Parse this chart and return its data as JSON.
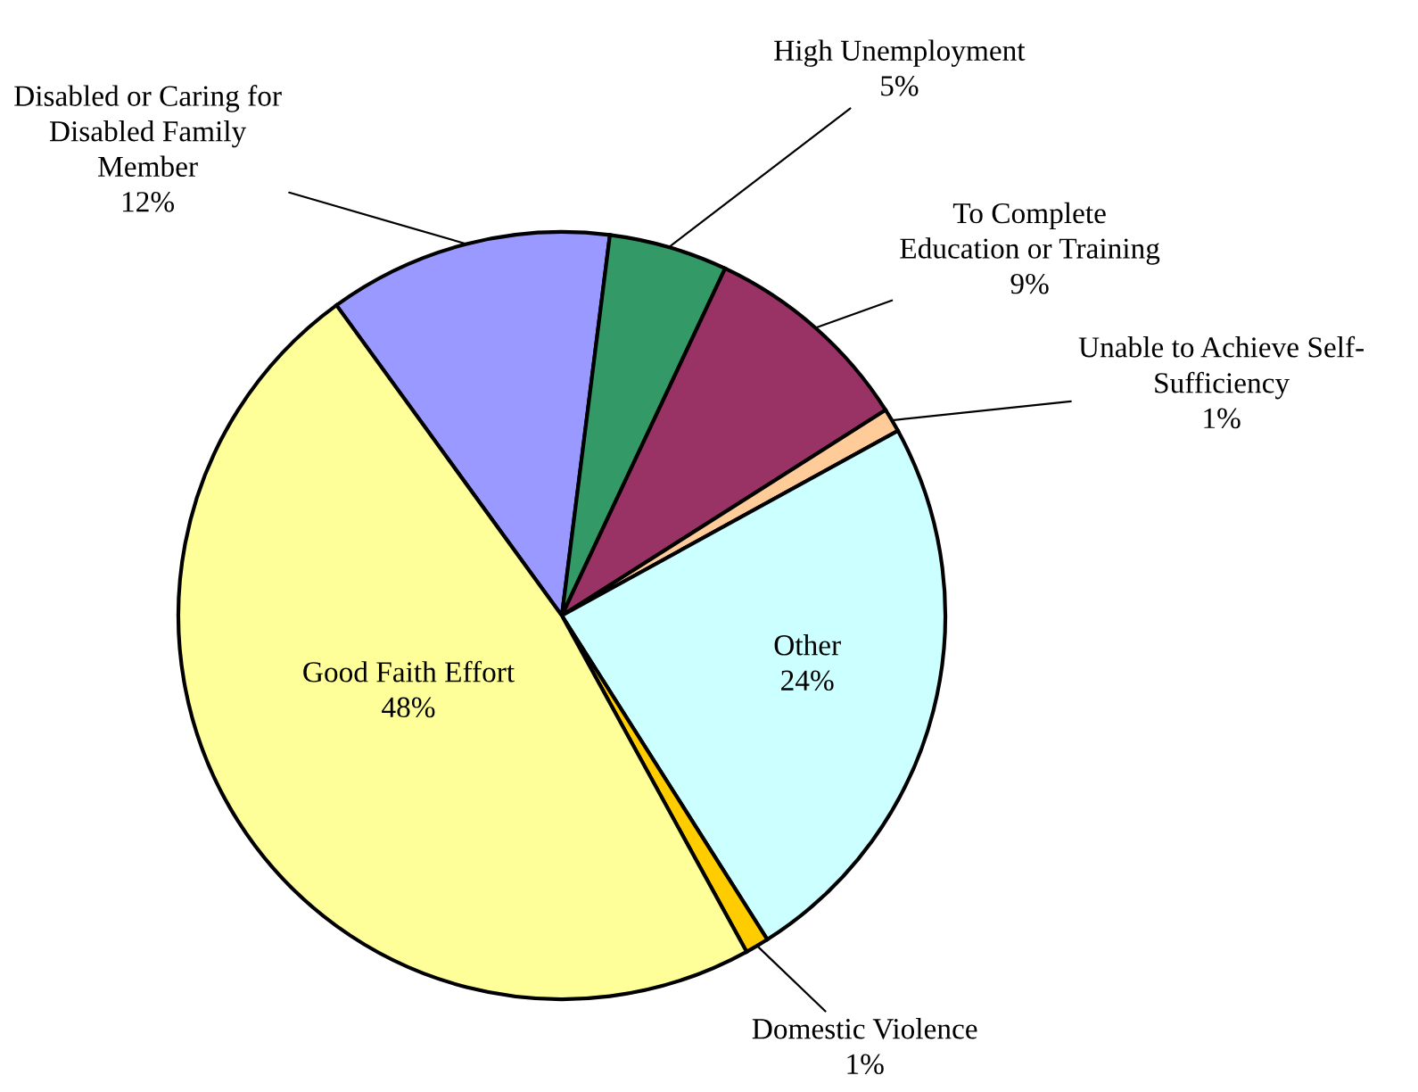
{
  "chart_data": {
    "type": "pie",
    "categories": [
      "Disabled or Caring for\nDisabled Family\nMember",
      "High Unemployment",
      "To Complete\nEducation or Training",
      "Unable to Achieve Self-\nSufficiency",
      "Other",
      "Domestic Violence",
      "Good Faith Effort"
    ],
    "values": [
      12,
      5,
      9,
      1,
      24,
      1,
      48
    ],
    "value_labels": [
      "12%",
      "5%",
      "9%",
      "1%",
      "24%",
      "1%",
      "48%"
    ],
    "colors": [
      "#9999ff",
      "#339966",
      "#993366",
      "#ffcc99",
      "#ccffff",
      "#ffcc00",
      "#ffff99"
    ]
  }
}
